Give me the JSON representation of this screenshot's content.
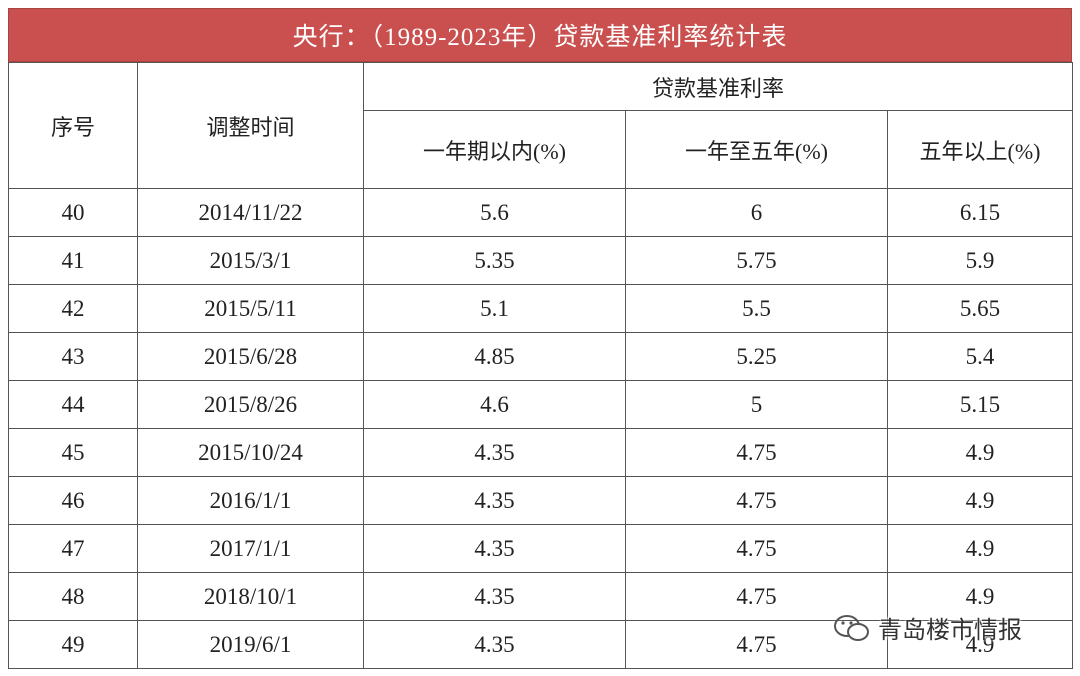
{
  "header": {
    "title": "央行：（1989-2023年）贷款基准利率统计表"
  },
  "table": {
    "headers": {
      "index": "序号",
      "date": "调整时间",
      "group": "贷款基准利率",
      "cols": [
        "一年期以内(%)",
        "一年至五年(%)",
        "五年以上(%)"
      ]
    },
    "rows": [
      [
        40,
        "2014/11/22",
        5.6,
        6,
        6.15
      ],
      [
        41,
        "2015/3/1",
        5.35,
        5.75,
        5.9
      ],
      [
        42,
        "2015/5/11",
        5.1,
        5.5,
        5.65
      ],
      [
        43,
        "2015/6/28",
        4.85,
        5.25,
        5.4
      ],
      [
        44,
        "2015/8/26",
        4.6,
        5,
        5.15
      ],
      [
        45,
        "2015/10/24",
        4.35,
        4.75,
        4.9
      ],
      [
        46,
        "2016/1/1",
        4.35,
        4.75,
        4.9
      ],
      [
        47,
        "2017/1/1",
        4.35,
        4.75,
        4.9
      ],
      [
        48,
        "2018/10/1",
        4.35,
        4.75,
        4.9
      ],
      [
        49,
        "2019/6/1",
        4.35,
        4.75,
        4.9
      ]
    ]
  },
  "watermark": "青岛楼市情报"
}
